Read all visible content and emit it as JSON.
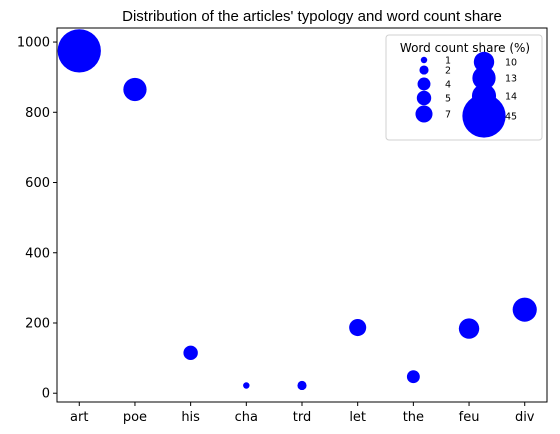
{
  "chart_data": {
    "type": "scatter",
    "title": "Distribution of the articles' typology and word count share",
    "xlabel": "",
    "ylabel": "",
    "categories": [
      "art",
      "poe",
      "his",
      "cha",
      "trd",
      "let",
      "the",
      "feu",
      "div"
    ],
    "values": [
      975,
      865,
      115,
      22,
      22,
      187,
      47,
      184,
      238
    ],
    "word_count_share": [
      45,
      13,
      5,
      1,
      2,
      7,
      4,
      10,
      14
    ],
    "ylim": [
      -25,
      1040
    ],
    "yticks": [
      0,
      200,
      400,
      600,
      800,
      1000
    ],
    "grid": false,
    "marker_color": "#0000ff",
    "legend": {
      "title": "Word count share (%)",
      "position": "top-right",
      "entries": [
        "1",
        "2",
        "4",
        "5",
        "7",
        "10",
        "13",
        "14",
        "45"
      ]
    }
  }
}
